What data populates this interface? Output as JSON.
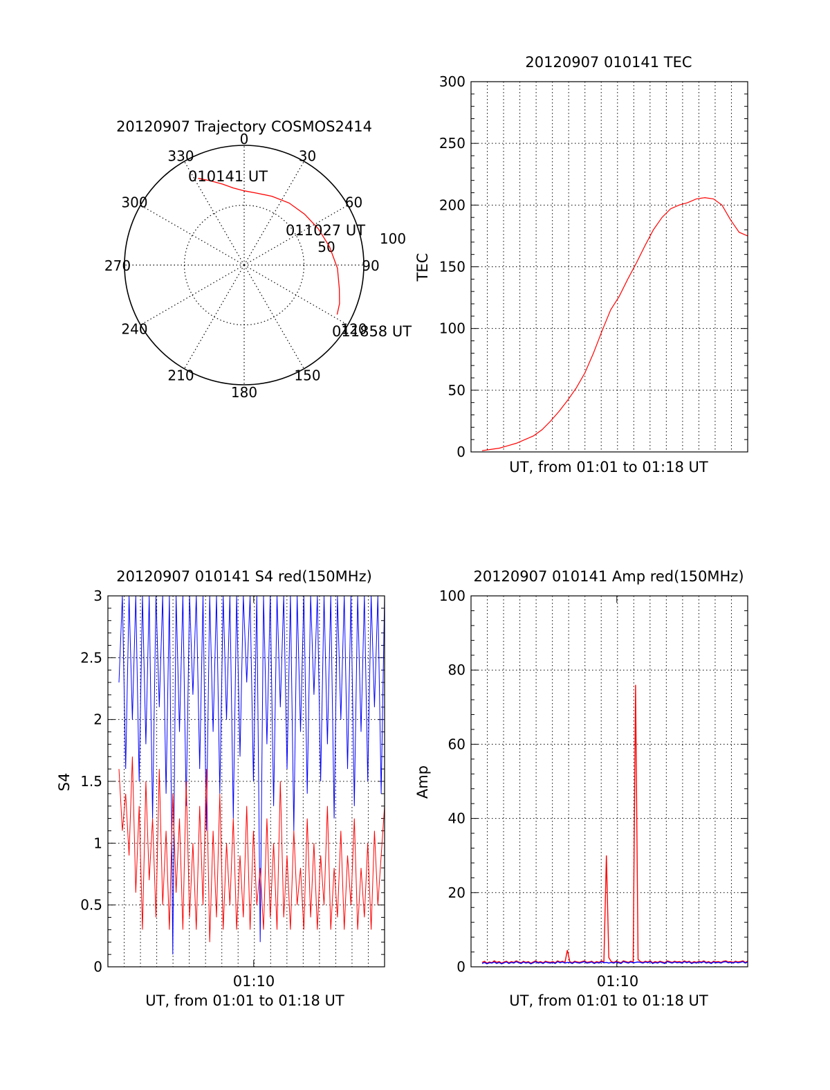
{
  "chart_data": [
    {
      "id": "trajectory",
      "type": "polar",
      "title": "20120907 Trajectory COSMOS2414",
      "azimuth_labels": [
        "0",
        "30",
        "60",
        "90",
        "120",
        "150",
        "180",
        "210",
        "240",
        "270",
        "300",
        "330"
      ],
      "radial_labels": [
        "50",
        "100"
      ],
      "time_labels": [
        "010141 UT",
        "011027 UT",
        "011858 UT"
      ],
      "series": [
        {
          "color": "#ff0000",
          "points": [
            {
              "az": 332,
              "r": 82
            },
            {
              "az": 338,
              "r": 76
            },
            {
              "az": 345,
              "r": 70
            },
            {
              "az": 352,
              "r": 65
            },
            {
              "az": 0,
              "r": 62
            },
            {
              "az": 10,
              "r": 61
            },
            {
              "az": 22,
              "r": 62
            },
            {
              "az": 36,
              "r": 64
            },
            {
              "az": 50,
              "r": 66
            },
            {
              "az": 64,
              "r": 69
            },
            {
              "az": 78,
              "r": 73
            },
            {
              "az": 92,
              "r": 78
            },
            {
              "az": 104,
              "r": 82
            },
            {
              "az": 112,
              "r": 86
            },
            {
              "az": 118,
              "r": 88
            }
          ]
        }
      ]
    },
    {
      "id": "tec",
      "type": "line",
      "title": "20120907 010141 TEC",
      "xlabel": "UT, from 01:01 to 01:18 UT",
      "ylabel": "TEC",
      "y_ticks": [
        "0",
        "50",
        "100",
        "150",
        "200",
        "250",
        "300"
      ],
      "ylim": [
        0,
        300
      ],
      "grid": true,
      "series": [
        {
          "color": "#ff0000",
          "values": [
            1,
            2,
            3,
            5,
            7,
            10,
            13,
            18,
            25,
            33,
            42,
            52,
            64,
            80,
            98,
            115,
            126,
            140,
            153,
            167,
            180,
            190,
            197,
            200,
            202,
            205,
            206,
            205,
            200,
            188,
            178,
            175
          ]
        }
      ]
    },
    {
      "id": "s4",
      "type": "line",
      "title": "20120907 010141 S4 red(150MHz)",
      "xlabel": "UT, from 01:01 to 01:18 UT",
      "ylabel": "S4",
      "x_ticks": [
        "01:10"
      ],
      "y_ticks": [
        "0",
        "0.5",
        "1",
        "1.5",
        "2",
        "2.5",
        "3"
      ],
      "ylim": [
        0,
        3
      ],
      "grid": true,
      "series": [
        {
          "color": "#0000ff",
          "values": [
            2.3,
            3.0,
            1.6,
            3.0,
            2.0,
            3.0,
            1.5,
            3.0,
            1.8,
            3.0,
            1.2,
            3.0,
            2.1,
            3.0,
            1.4,
            3.0,
            0.1,
            3.0,
            1.9,
            3.0,
            1.3,
            3.0,
            2.2,
            3.0,
            1.6,
            3.0,
            1.1,
            3.0,
            1.9,
            3.0,
            1.4,
            3.0,
            2.0,
            3.0,
            1.2,
            3.0,
            1.7,
            3.0,
            2.3,
            3.0,
            1.5,
            3.0,
            0.2,
            3.0,
            1.8,
            3.0,
            1.3,
            3.0,
            2.1,
            3.0,
            1.6,
            3.0,
            1.1,
            3.0,
            1.9,
            3.0,
            1.4,
            3.0,
            2.2,
            3.0,
            1.5,
            3.0,
            1.8,
            3.0,
            1.2,
            3.0,
            2.0,
            3.0,
            1.6,
            3.0,
            1.3,
            3.0,
            1.9,
            3.0,
            1.5,
            3.0,
            2.1,
            3.0,
            1.4,
            3.0
          ]
        },
        {
          "color": "#ff0000",
          "values": [
            1.6,
            1.1,
            1.4,
            0.9,
            1.7,
            0.6,
            1.3,
            0.3,
            1.5,
            0.7,
            1.2,
            0.4,
            1.6,
            0.5,
            1.1,
            0.3,
            1.4,
            0.6,
            1.2,
            0.3,
            1.5,
            0.4,
            1.0,
            0.3,
            1.3,
            0.5,
            1.6,
            0.2,
            1.1,
            0.4,
            1.4,
            0.3,
            1.0,
            0.5,
            1.2,
            0.3,
            0.9,
            0.4,
            1.3,
            0.3,
            1.1,
            0.5,
            0.8,
            0.3,
            1.2,
            0.4,
            1.0,
            0.3,
            1.5,
            0.4,
            0.9,
            0.3,
            1.1,
            0.5,
            0.8,
            0.3,
            1.2,
            0.4,
            1.0,
            0.3,
            0.9,
            0.5,
            1.3,
            0.3,
            0.8,
            0.4,
            1.1,
            0.3,
            0.9,
            0.5,
            1.2,
            0.3,
            0.8,
            0.4,
            1.0,
            0.3,
            1.1,
            0.5,
            0.9,
            1.3
          ]
        }
      ]
    },
    {
      "id": "amp",
      "type": "line",
      "title": "20120907 010141 Amp red(150MHz)",
      "xlabel": "UT, from 01:01 to 01:18 UT",
      "ylabel": "Amp",
      "x_ticks": [
        "01:10"
      ],
      "y_ticks": [
        "0",
        "20",
        "40",
        "60",
        "80",
        "100"
      ],
      "ylim": [
        0,
        100
      ],
      "grid": true,
      "series": [
        {
          "color": "#ff0000",
          "values": [
            1.2,
            1.5,
            1.0,
            1.3,
            1.1,
            1.6,
            1.2,
            1.4,
            1.0,
            1.3,
            1.5,
            1.1,
            1.4,
            1.2,
            1.6,
            1.3,
            1.1,
            1.5,
            1.2,
            1.4,
            1.0,
            1.3,
            1.6,
            1.2,
            1.4,
            1.1,
            1.5,
            1.3,
            1.2,
            1.4,
            1.1,
            1.6,
            1.3,
            1.5,
            1.2,
            4.5,
            1.4,
            1.1,
            1.5,
            1.3,
            1.2,
            1.4,
            1.6,
            1.2,
            1.3,
            1.5,
            1.1,
            1.4,
            1.2,
            1.6,
            1.3,
            30,
            2.5,
            1.4,
            1.2,
            1.5,
            1.3,
            1.1,
            1.6,
            1.4,
            1.2,
            1.5,
            1.3,
            76,
            2.0,
            1.4,
            1.2,
            1.5,
            1.3,
            1.6,
            1.1,
            1.4,
            1.2,
            1.5,
            1.3,
            1.1,
            1.6,
            1.4,
            1.2,
            1.5,
            1.3,
            1.4,
            1.2,
            1.6,
            1.3,
            1.5,
            1.1,
            1.4,
            1.2,
            1.5,
            1.3,
            1.6,
            1.2,
            1.4,
            1.1,
            1.5,
            1.3,
            1.4,
            1.2,
            1.5,
            1.6,
            1.3,
            1.4,
            1.2,
            1.5,
            1.3,
            1.4,
            1.6,
            1.2,
            1.5
          ]
        },
        {
          "color": "#0000ff",
          "values": [
            0.9,
            1.2,
            0.8,
            1.1,
            1.0,
            1.3,
            0.9,
            1.2,
            0.8,
            1.1,
            1.3,
            0.9,
            1.2,
            1.0,
            1.4,
            1.1,
            0.9,
            1.3,
            1.0,
            1.2,
            0.8,
            1.1,
            1.4,
            1.0,
            1.2,
            0.9,
            1.3,
            1.1,
            1.0,
            1.2,
            0.9,
            1.4,
            1.1,
            1.3,
            1.0,
            1.2,
            1.2,
            0.9,
            1.3,
            1.1,
            1.0,
            1.2,
            1.4,
            1.0,
            1.1,
            1.3,
            0.9,
            1.2,
            1.0,
            1.4,
            1.1,
            1.2,
            1.0,
            1.2,
            1.0,
            1.3,
            1.1,
            0.9,
            1.4,
            1.2,
            1.0,
            1.3,
            1.1,
            1.2,
            1.3,
            1.2,
            1.0,
            1.3,
            1.1,
            1.4,
            0.9,
            1.2,
            1.0,
            1.3,
            1.1,
            0.9,
            1.4,
            1.2,
            1.0,
            1.3,
            1.1,
            1.2,
            1.0,
            1.4,
            1.1,
            1.3,
            0.9,
            1.2,
            1.0,
            1.3,
            1.1,
            1.4,
            1.0,
            1.2,
            0.9,
            1.3,
            1.1,
            1.2,
            1.0,
            1.3,
            1.4,
            1.1,
            1.2,
            1.0,
            1.3,
            1.1,
            1.2,
            1.4,
            1.0,
            1.3
          ]
        }
      ]
    }
  ]
}
